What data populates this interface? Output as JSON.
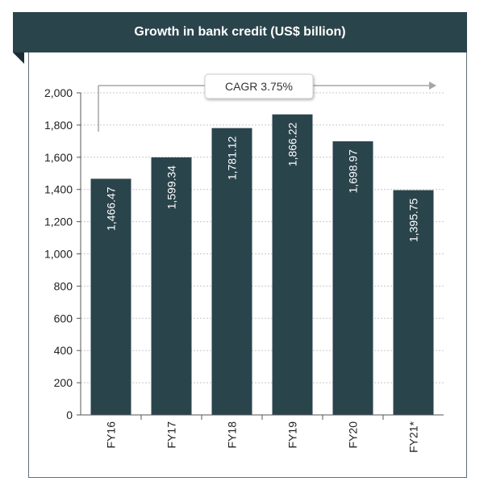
{
  "chart_data": {
    "type": "bar",
    "title": "Growth in bank credit (US$ billion)",
    "categories": [
      "FY16",
      "FY17",
      "FY18",
      "FY19",
      "FY20",
      "FY21*"
    ],
    "values": [
      1466.47,
      1599.34,
      1781.12,
      1866.22,
      1698.97,
      1395.75
    ],
    "value_labels": [
      "1,466.47",
      "1,599.34",
      "1,781.12",
      "1,866.22",
      "1,698.97",
      "1,395.75"
    ],
    "y_ticks": [
      0,
      200,
      400,
      600,
      800,
      1000,
      1200,
      1400,
      1600,
      1800,
      2000
    ],
    "y_tick_labels": [
      "0",
      "200",
      "400",
      "600",
      "800",
      "1,000",
      "1,200",
      "1,400",
      "1,600",
      "1,800",
      "2,000"
    ],
    "ylim": [
      0,
      2000
    ],
    "grid": true,
    "annotation": "CAGR 3.75%",
    "xlabel": "",
    "ylabel": ""
  },
  "colors": {
    "bar": "#2a444c",
    "header": "#2a444c",
    "grid": "#c8c8c8",
    "arrow": "#a6a6a6"
  }
}
